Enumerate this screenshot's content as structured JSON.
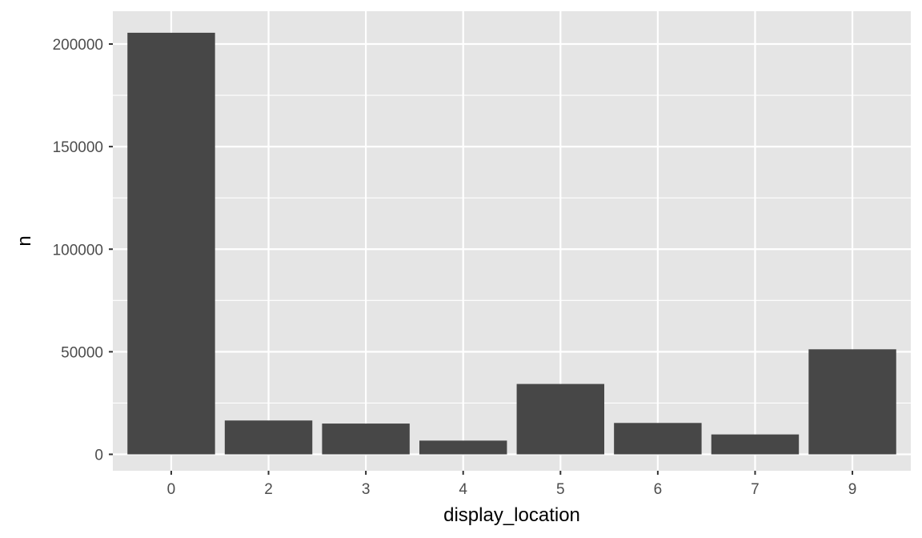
{
  "chart_data": {
    "type": "bar",
    "title": "",
    "xlabel": "display_location",
    "ylabel": "n",
    "categories": [
      "0",
      "2",
      "3",
      "4",
      "5",
      "6",
      "7",
      "9"
    ],
    "values": [
      205500,
      16500,
      15000,
      6700,
      34300,
      15300,
      9700,
      51200
    ],
    "ylim": [
      -8000,
      216000
    ],
    "yticks": [
      0,
      50000,
      100000,
      150000,
      200000
    ],
    "ytick_labels": [
      "0",
      "50000",
      "100000",
      "150000",
      "200000"
    ],
    "grid": true,
    "legend": "none",
    "colors": {
      "panel_background": "#e5e5e5",
      "grid_major": "#ffffff",
      "bar_fill": "#474747",
      "tick_text": "#4d4d4d",
      "axis_title_text": "#000000"
    }
  }
}
